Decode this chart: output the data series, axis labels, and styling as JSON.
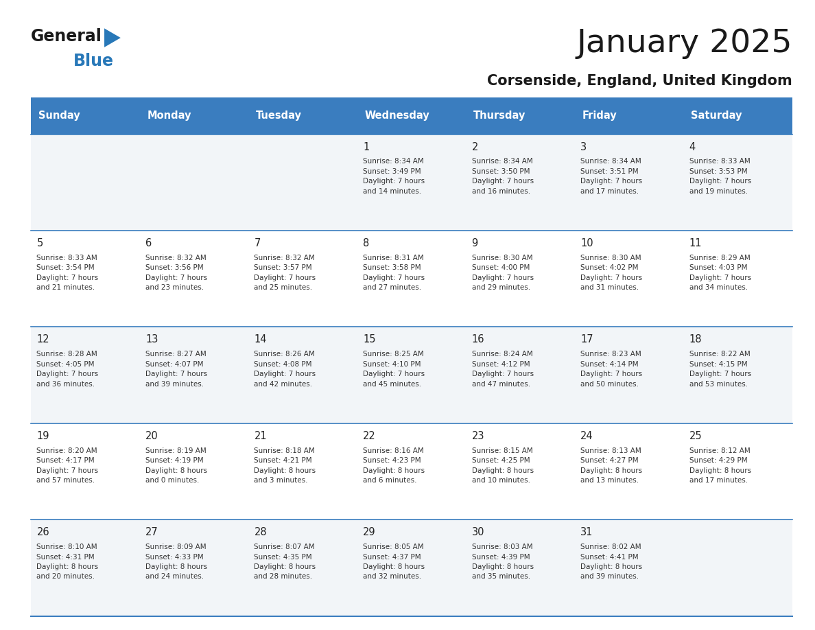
{
  "title": "January 2025",
  "subtitle": "Corsenside, England, United Kingdom",
  "header_color": "#3a7dbf",
  "header_text_color": "#ffffff",
  "day_names": [
    "Sunday",
    "Monday",
    "Tuesday",
    "Wednesday",
    "Thursday",
    "Friday",
    "Saturday"
  ],
  "title_color": "#1a1a1a",
  "subtitle_color": "#1a1a1a",
  "cell_text_color": "#333333",
  "day_num_color": "#222222",
  "border_color": "#3a7dbf",
  "row0_color": "#f2f5f8",
  "row1_color": "#ffffff",
  "logo_general_color": "#1a1a1a",
  "logo_blue_color": "#2878b8",
  "logo_triangle_color": "#2878b8",
  "calendar_data": [
    [
      {
        "day": 0,
        "info": ""
      },
      {
        "day": 0,
        "info": ""
      },
      {
        "day": 0,
        "info": ""
      },
      {
        "day": 1,
        "info": "Sunrise: 8:34 AM\nSunset: 3:49 PM\nDaylight: 7 hours\nand 14 minutes."
      },
      {
        "day": 2,
        "info": "Sunrise: 8:34 AM\nSunset: 3:50 PM\nDaylight: 7 hours\nand 16 minutes."
      },
      {
        "day": 3,
        "info": "Sunrise: 8:34 AM\nSunset: 3:51 PM\nDaylight: 7 hours\nand 17 minutes."
      },
      {
        "day": 4,
        "info": "Sunrise: 8:33 AM\nSunset: 3:53 PM\nDaylight: 7 hours\nand 19 minutes."
      }
    ],
    [
      {
        "day": 5,
        "info": "Sunrise: 8:33 AM\nSunset: 3:54 PM\nDaylight: 7 hours\nand 21 minutes."
      },
      {
        "day": 6,
        "info": "Sunrise: 8:32 AM\nSunset: 3:56 PM\nDaylight: 7 hours\nand 23 minutes."
      },
      {
        "day": 7,
        "info": "Sunrise: 8:32 AM\nSunset: 3:57 PM\nDaylight: 7 hours\nand 25 minutes."
      },
      {
        "day": 8,
        "info": "Sunrise: 8:31 AM\nSunset: 3:58 PM\nDaylight: 7 hours\nand 27 minutes."
      },
      {
        "day": 9,
        "info": "Sunrise: 8:30 AM\nSunset: 4:00 PM\nDaylight: 7 hours\nand 29 minutes."
      },
      {
        "day": 10,
        "info": "Sunrise: 8:30 AM\nSunset: 4:02 PM\nDaylight: 7 hours\nand 31 minutes."
      },
      {
        "day": 11,
        "info": "Sunrise: 8:29 AM\nSunset: 4:03 PM\nDaylight: 7 hours\nand 34 minutes."
      }
    ],
    [
      {
        "day": 12,
        "info": "Sunrise: 8:28 AM\nSunset: 4:05 PM\nDaylight: 7 hours\nand 36 minutes."
      },
      {
        "day": 13,
        "info": "Sunrise: 8:27 AM\nSunset: 4:07 PM\nDaylight: 7 hours\nand 39 minutes."
      },
      {
        "day": 14,
        "info": "Sunrise: 8:26 AM\nSunset: 4:08 PM\nDaylight: 7 hours\nand 42 minutes."
      },
      {
        "day": 15,
        "info": "Sunrise: 8:25 AM\nSunset: 4:10 PM\nDaylight: 7 hours\nand 45 minutes."
      },
      {
        "day": 16,
        "info": "Sunrise: 8:24 AM\nSunset: 4:12 PM\nDaylight: 7 hours\nand 47 minutes."
      },
      {
        "day": 17,
        "info": "Sunrise: 8:23 AM\nSunset: 4:14 PM\nDaylight: 7 hours\nand 50 minutes."
      },
      {
        "day": 18,
        "info": "Sunrise: 8:22 AM\nSunset: 4:15 PM\nDaylight: 7 hours\nand 53 minutes."
      }
    ],
    [
      {
        "day": 19,
        "info": "Sunrise: 8:20 AM\nSunset: 4:17 PM\nDaylight: 7 hours\nand 57 minutes."
      },
      {
        "day": 20,
        "info": "Sunrise: 8:19 AM\nSunset: 4:19 PM\nDaylight: 8 hours\nand 0 minutes."
      },
      {
        "day": 21,
        "info": "Sunrise: 8:18 AM\nSunset: 4:21 PM\nDaylight: 8 hours\nand 3 minutes."
      },
      {
        "day": 22,
        "info": "Sunrise: 8:16 AM\nSunset: 4:23 PM\nDaylight: 8 hours\nand 6 minutes."
      },
      {
        "day": 23,
        "info": "Sunrise: 8:15 AM\nSunset: 4:25 PM\nDaylight: 8 hours\nand 10 minutes."
      },
      {
        "day": 24,
        "info": "Sunrise: 8:13 AM\nSunset: 4:27 PM\nDaylight: 8 hours\nand 13 minutes."
      },
      {
        "day": 25,
        "info": "Sunrise: 8:12 AM\nSunset: 4:29 PM\nDaylight: 8 hours\nand 17 minutes."
      }
    ],
    [
      {
        "day": 26,
        "info": "Sunrise: 8:10 AM\nSunset: 4:31 PM\nDaylight: 8 hours\nand 20 minutes."
      },
      {
        "day": 27,
        "info": "Sunrise: 8:09 AM\nSunset: 4:33 PM\nDaylight: 8 hours\nand 24 minutes."
      },
      {
        "day": 28,
        "info": "Sunrise: 8:07 AM\nSunset: 4:35 PM\nDaylight: 8 hours\nand 28 minutes."
      },
      {
        "day": 29,
        "info": "Sunrise: 8:05 AM\nSunset: 4:37 PM\nDaylight: 8 hours\nand 32 minutes."
      },
      {
        "day": 30,
        "info": "Sunrise: 8:03 AM\nSunset: 4:39 PM\nDaylight: 8 hours\nand 35 minutes."
      },
      {
        "day": 31,
        "info": "Sunrise: 8:02 AM\nSunset: 4:41 PM\nDaylight: 8 hours\nand 39 minutes."
      },
      {
        "day": 0,
        "info": ""
      }
    ]
  ]
}
